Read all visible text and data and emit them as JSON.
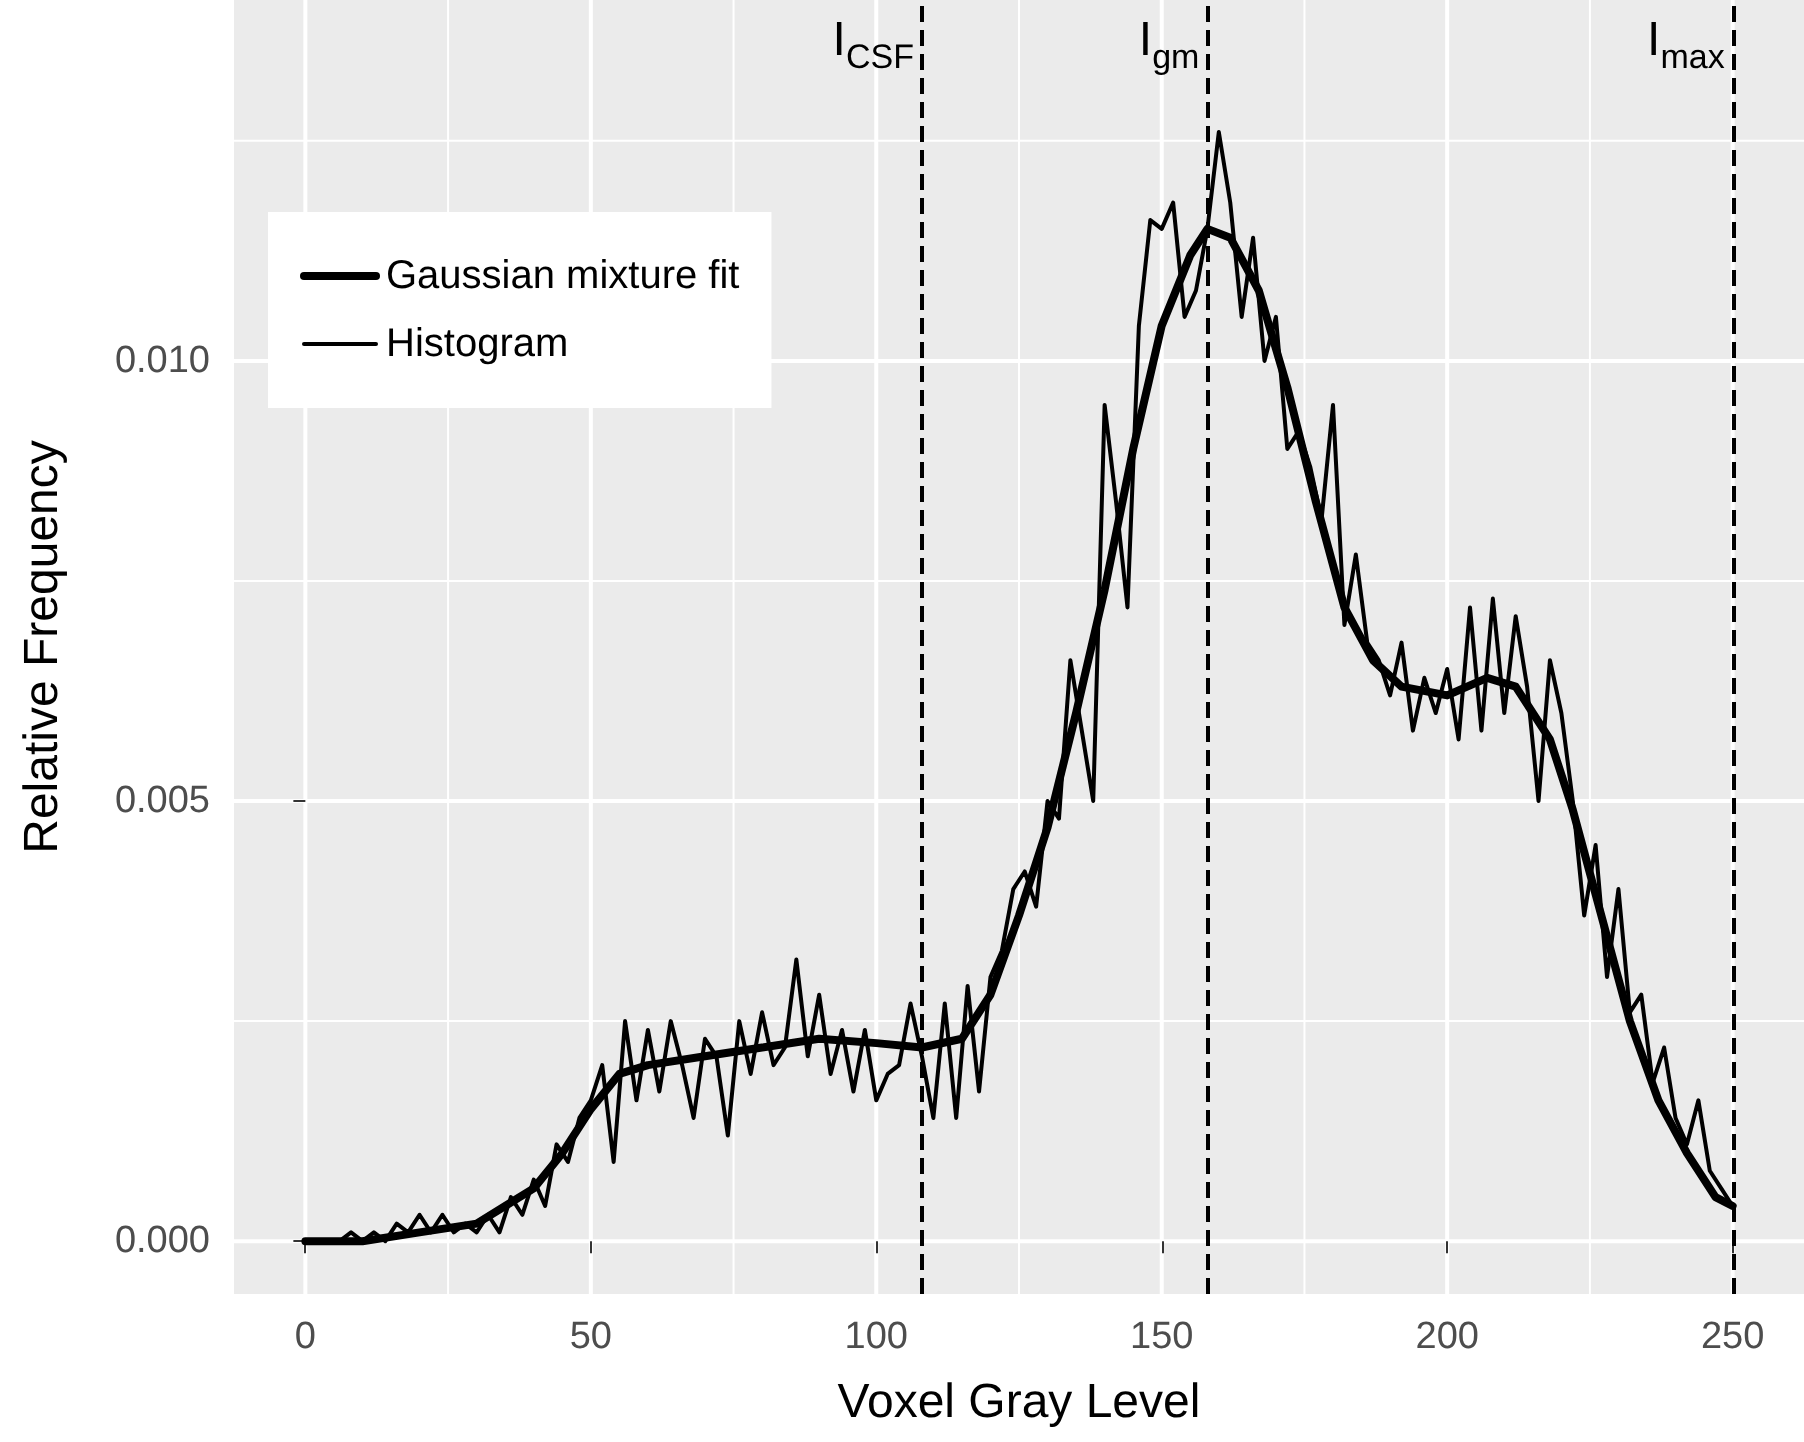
{
  "chart_data": {
    "type": "line",
    "xlabel": "Voxel Gray Level",
    "ylabel": "Relative Frequency",
    "xlim": [
      -12.5,
      262.5
    ],
    "xticks": [
      0,
      50,
      100,
      150,
      200,
      250
    ],
    "ylim": [
      -0.0006,
      0.0141
    ],
    "yticks": [
      {
        "value": 0,
        "label": "0.000"
      },
      {
        "value": 0.005,
        "label": "0.005"
      },
      {
        "value": 0.01,
        "label": "0.010"
      }
    ],
    "grid": true,
    "legend": "top left",
    "marker": "none",
    "series": [
      {
        "name": "Gaussian mixture fit",
        "color": "#000000",
        "x": [
          0,
          10,
          20,
          30,
          40,
          45,
          50,
          55,
          60,
          70,
          80,
          90,
          100,
          108,
          115,
          120,
          125,
          130,
          135,
          140,
          145,
          150,
          155,
          158,
          162,
          167,
          172,
          177,
          182,
          187,
          192,
          200,
          207,
          212,
          218,
          222,
          227,
          232,
          237,
          242,
          247,
          250
        ],
        "values": [
          0,
          0,
          0.0001,
          0.0002,
          0.0006,
          0.001,
          0.0015,
          0.0019,
          0.002,
          0.0021,
          0.0022,
          0.0023,
          0.00225,
          0.0022,
          0.0023,
          0.0028,
          0.0037,
          0.0047,
          0.006,
          0.0074,
          0.009,
          0.0104,
          0.0112,
          0.0115,
          0.0114,
          0.0108,
          0.0097,
          0.0084,
          0.0072,
          0.0066,
          0.0063,
          0.0062,
          0.0064,
          0.0063,
          0.0057,
          0.0049,
          0.0037,
          0.0025,
          0.0016,
          0.001,
          0.0005,
          0.0004
        ]
      },
      {
        "name": "Histogram",
        "color": "#000000",
        "x": [
          0,
          2,
          4,
          6,
          8,
          10,
          12,
          14,
          16,
          18,
          20,
          22,
          24,
          26,
          28,
          30,
          32,
          34,
          36,
          38,
          40,
          42,
          44,
          46,
          48,
          50,
          52,
          54,
          56,
          58,
          60,
          62,
          64,
          66,
          68,
          70,
          72,
          74,
          76,
          78,
          80,
          82,
          84,
          86,
          88,
          90,
          92,
          94,
          96,
          98,
          100,
          102,
          104,
          106,
          108,
          110,
          112,
          114,
          116,
          118,
          120,
          122,
          124,
          126,
          128,
          130,
          132,
          134,
          136,
          138,
          140,
          142,
          144,
          146,
          148,
          150,
          152,
          154,
          156,
          158,
          160,
          162,
          164,
          166,
          168,
          170,
          172,
          174,
          176,
          178,
          180,
          182,
          184,
          186,
          188,
          190,
          192,
          194,
          196,
          198,
          200,
          202,
          204,
          206,
          208,
          210,
          212,
          214,
          216,
          218,
          220,
          222,
          224,
          226,
          228,
          230,
          232,
          234,
          236,
          238,
          240,
          242,
          244,
          246,
          248,
          250
        ],
        "values": [
          0,
          0,
          0,
          0,
          0.0001,
          0,
          0.0001,
          0,
          0.0002,
          0.0001,
          0.0003,
          0.0001,
          0.0003,
          0.0001,
          0.0002,
          0.0001,
          0.0003,
          0.0001,
          0.0005,
          0.0003,
          0.0007,
          0.0004,
          0.0011,
          0.0009,
          0.0014,
          0.0016,
          0.002,
          0.0009,
          0.0025,
          0.0016,
          0.0024,
          0.0017,
          0.0025,
          0.002,
          0.0014,
          0.0023,
          0.0021,
          0.0012,
          0.0025,
          0.0019,
          0.0026,
          0.002,
          0.0022,
          0.0032,
          0.0021,
          0.0028,
          0.0019,
          0.0024,
          0.0017,
          0.0024,
          0.0016,
          0.0019,
          0.002,
          0.0027,
          0.0021,
          0.0014,
          0.0027,
          0.0014,
          0.0029,
          0.0017,
          0.003,
          0.0033,
          0.004,
          0.0042,
          0.0038,
          0.005,
          0.0048,
          0.0066,
          0.0058,
          0.005,
          0.0095,
          0.0084,
          0.0072,
          0.0104,
          0.0116,
          0.0115,
          0.0118,
          0.0105,
          0.0108,
          0.0115,
          0.0126,
          0.0118,
          0.0105,
          0.0114,
          0.01,
          0.0105,
          0.009,
          0.0092,
          0.0088,
          0.0082,
          0.0095,
          0.007,
          0.0078,
          0.0068,
          0.0066,
          0.0062,
          0.0068,
          0.0058,
          0.0064,
          0.006,
          0.0065,
          0.0057,
          0.0072,
          0.0058,
          0.0073,
          0.006,
          0.0071,
          0.0063,
          0.005,
          0.0066,
          0.006,
          0.005,
          0.0037,
          0.0045,
          0.003,
          0.004,
          0.0026,
          0.0028,
          0.0018,
          0.0022,
          0.0014,
          0.0011,
          0.0016,
          0.0008,
          0.0006,
          0.0004
        ]
      }
    ],
    "ref_lines": [
      {
        "axis": "x",
        "value": 108,
        "label": "I$_{CSF}$",
        "color": "#000000",
        "line_style": "dashed"
      },
      {
        "axis": "x",
        "value": 158,
        "label": "I$_{gm}$",
        "color": "#000000",
        "line_style": "dashed"
      },
      {
        "axis": "x",
        "value": 250,
        "label": "I$_{max}$",
        "color": "#000000",
        "line_style": "dashed"
      }
    ]
  }
}
